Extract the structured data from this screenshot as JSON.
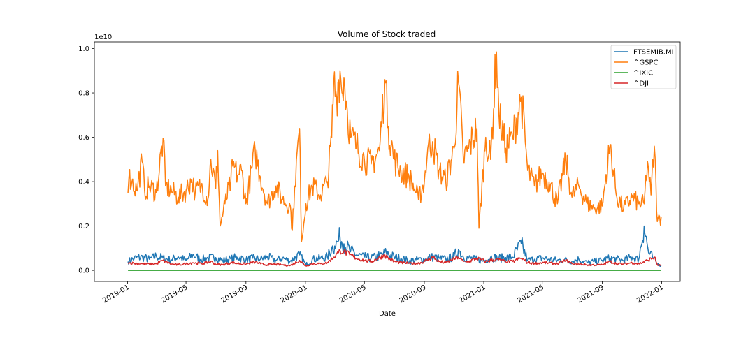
{
  "chart_data": {
    "type": "line",
    "title": "Volume of Stock traded",
    "xlabel": "Date",
    "ylabel": "",
    "y_offset_label": "1e10",
    "y_scale": 10000000000,
    "xlim": [
      "2018-10-25",
      "2022-02-08"
    ],
    "ylim": [
      -0.05,
      1.03
    ],
    "x_ticks": [
      "2019-01",
      "2019-05",
      "2019-09",
      "2020-01",
      "2020-05",
      "2020-09",
      "2021-01",
      "2021-05",
      "2021-09",
      "2022-01"
    ],
    "y_ticks": [
      "0.0",
      "0.2",
      "0.4",
      "0.6",
      "0.8",
      "1.0"
    ],
    "legend_position": "top-right",
    "series": [
      {
        "name": "FTSEMIB.MI",
        "color": "#1f77b4",
        "points": [
          [
            "2019-01-02",
            0.04
          ],
          [
            "2019-01-15",
            0.055
          ],
          [
            "2019-02-01",
            0.06
          ],
          [
            "2019-02-15",
            0.05
          ],
          [
            "2019-03-01",
            0.065
          ],
          [
            "2019-03-15",
            0.055
          ],
          [
            "2019-04-01",
            0.048
          ],
          [
            "2019-04-15",
            0.062
          ],
          [
            "2019-05-01",
            0.045
          ],
          [
            "2019-05-15",
            0.07
          ],
          [
            "2019-06-01",
            0.05
          ],
          [
            "2019-06-15",
            0.055
          ],
          [
            "2019-07-01",
            0.058
          ],
          [
            "2019-07-15",
            0.045
          ],
          [
            "2019-08-01",
            0.052
          ],
          [
            "2019-08-15",
            0.06
          ],
          [
            "2019-09-01",
            0.048
          ],
          [
            "2019-09-15",
            0.055
          ],
          [
            "2019-10-01",
            0.05
          ],
          [
            "2019-10-15",
            0.062
          ],
          [
            "2019-11-01",
            0.045
          ],
          [
            "2019-11-15",
            0.055
          ],
          [
            "2019-12-01",
            0.042
          ],
          [
            "2019-12-20",
            0.07
          ],
          [
            "2020-01-02",
            0.025
          ],
          [
            "2020-01-15",
            0.05
          ],
          [
            "2020-02-01",
            0.055
          ],
          [
            "2020-02-15",
            0.06
          ],
          [
            "2020-02-24",
            0.1
          ],
          [
            "2020-03-01",
            0.11
          ],
          [
            "2020-03-08",
            0.13
          ],
          [
            "2020-03-12",
            0.15
          ],
          [
            "2020-03-20",
            0.12
          ],
          [
            "2020-04-01",
            0.09
          ],
          [
            "2020-04-15",
            0.07
          ],
          [
            "2020-05-01",
            0.06
          ],
          [
            "2020-05-15",
            0.055
          ],
          [
            "2020-06-01",
            0.065
          ],
          [
            "2020-06-15",
            0.08
          ],
          [
            "2020-07-01",
            0.06
          ],
          [
            "2020-07-15",
            0.055
          ],
          [
            "2020-08-01",
            0.042
          ],
          [
            "2020-08-15",
            0.048
          ],
          [
            "2020-09-01",
            0.05
          ],
          [
            "2020-09-15",
            0.06
          ],
          [
            "2020-10-01",
            0.055
          ],
          [
            "2020-10-15",
            0.05
          ],
          [
            "2020-11-01",
            0.062
          ],
          [
            "2020-11-10",
            0.095
          ],
          [
            "2020-11-20",
            0.06
          ],
          [
            "2020-12-01",
            0.055
          ],
          [
            "2020-12-15",
            0.05
          ],
          [
            "2021-01-01",
            0.042
          ],
          [
            "2021-01-15",
            0.06
          ],
          [
            "2021-02-01",
            0.055
          ],
          [
            "2021-02-15",
            0.058
          ],
          [
            "2021-03-01",
            0.06
          ],
          [
            "2021-03-19",
            0.12
          ],
          [
            "2021-04-01",
            0.045
          ],
          [
            "2021-04-15",
            0.05
          ],
          [
            "2021-05-01",
            0.055
          ],
          [
            "2021-05-15",
            0.05
          ],
          [
            "2021-06-01",
            0.045
          ],
          [
            "2021-06-15",
            0.048
          ],
          [
            "2021-07-01",
            0.042
          ],
          [
            "2021-07-15",
            0.05
          ],
          [
            "2021-08-01",
            0.035
          ],
          [
            "2021-08-15",
            0.04
          ],
          [
            "2021-09-01",
            0.045
          ],
          [
            "2021-09-17",
            0.055
          ],
          [
            "2021-10-01",
            0.05
          ],
          [
            "2021-10-15",
            0.045
          ],
          [
            "2021-11-01",
            0.06
          ],
          [
            "2021-11-15",
            0.05
          ],
          [
            "2021-11-26",
            0.2
          ],
          [
            "2021-12-05",
            0.08
          ],
          [
            "2021-12-15",
            0.055
          ],
          [
            "2021-12-22",
            0.03
          ],
          [
            "2021-12-31",
            0.025
          ]
        ]
      },
      {
        "name": "^GSPC",
        "color": "#ff7f0e",
        "points": [
          [
            "2019-01-02",
            0.35
          ],
          [
            "2019-01-04",
            0.42
          ],
          [
            "2019-01-10",
            0.4
          ],
          [
            "2019-01-20",
            0.36
          ],
          [
            "2019-01-31",
            0.49
          ],
          [
            "2019-02-05",
            0.36
          ],
          [
            "2019-02-15",
            0.38
          ],
          [
            "2019-03-01",
            0.35
          ],
          [
            "2019-03-15",
            0.595
          ],
          [
            "2019-03-20",
            0.38
          ],
          [
            "2019-04-01",
            0.36
          ],
          [
            "2019-04-15",
            0.33
          ],
          [
            "2019-05-01",
            0.36
          ],
          [
            "2019-05-13",
            0.41
          ],
          [
            "2019-05-20",
            0.35
          ],
          [
            "2019-06-01",
            0.38
          ],
          [
            "2019-06-15",
            0.32
          ],
          [
            "2019-06-21",
            0.5
          ],
          [
            "2019-07-01",
            0.37
          ],
          [
            "2019-07-05",
            0.54
          ],
          [
            "2019-07-10",
            0.2
          ],
          [
            "2019-07-20",
            0.3
          ],
          [
            "2019-08-01",
            0.4
          ],
          [
            "2019-08-05",
            0.47
          ],
          [
            "2019-08-15",
            0.43
          ],
          [
            "2019-08-23",
            0.45
          ],
          [
            "2019-09-01",
            0.3
          ],
          [
            "2019-09-20",
            0.54
          ],
          [
            "2019-10-01",
            0.42
          ],
          [
            "2019-10-15",
            0.3
          ],
          [
            "2019-11-01",
            0.38
          ],
          [
            "2019-11-15",
            0.32
          ],
          [
            "2019-12-01",
            0.29
          ],
          [
            "2019-12-05",
            0.18
          ],
          [
            "2019-12-10",
            0.38
          ],
          [
            "2019-12-20",
            0.64
          ],
          [
            "2019-12-24",
            0.13
          ],
          [
            "2020-01-02",
            0.3
          ],
          [
            "2020-01-15",
            0.38
          ],
          [
            "2020-02-01",
            0.34
          ],
          [
            "2020-02-15",
            0.4
          ],
          [
            "2020-02-24",
            0.6
          ],
          [
            "2020-02-28",
            0.85
          ],
          [
            "2020-03-05",
            0.78
          ],
          [
            "2020-03-09",
            0.86
          ],
          [
            "2020-03-12",
            0.9
          ],
          [
            "2020-03-16",
            0.8
          ],
          [
            "2020-03-20",
            0.87
          ],
          [
            "2020-03-27",
            0.72
          ],
          [
            "2020-04-03",
            0.6
          ],
          [
            "2020-04-15",
            0.56
          ],
          [
            "2020-05-01",
            0.5
          ],
          [
            "2020-05-15",
            0.48
          ],
          [
            "2020-06-01",
            0.54
          ],
          [
            "2020-06-12",
            0.86
          ],
          [
            "2020-06-19",
            0.65
          ],
          [
            "2020-07-01",
            0.5
          ],
          [
            "2020-07-15",
            0.45
          ],
          [
            "2020-08-01",
            0.42
          ],
          [
            "2020-08-15",
            0.35
          ],
          [
            "2020-08-20",
            0.32
          ],
          [
            "2020-09-01",
            0.4
          ],
          [
            "2020-09-08",
            0.55
          ],
          [
            "2020-09-18",
            0.58
          ],
          [
            "2020-10-01",
            0.45
          ],
          [
            "2020-10-15",
            0.4
          ],
          [
            "2020-11-01",
            0.55
          ],
          [
            "2020-11-10",
            0.85
          ],
          [
            "2020-11-20",
            0.5
          ],
          [
            "2020-12-01",
            0.55
          ],
          [
            "2020-12-18",
            0.64
          ],
          [
            "2020-12-22",
            0.19
          ],
          [
            "2021-01-05",
            0.6
          ],
          [
            "2021-01-15",
            0.5
          ],
          [
            "2021-01-27",
            0.985
          ],
          [
            "2021-02-01",
            0.7
          ],
          [
            "2021-02-15",
            0.55
          ],
          [
            "2021-03-01",
            0.6
          ],
          [
            "2021-03-19",
            0.78
          ],
          [
            "2021-04-01",
            0.45
          ],
          [
            "2021-04-15",
            0.38
          ],
          [
            "2021-05-01",
            0.44
          ],
          [
            "2021-05-15",
            0.4
          ],
          [
            "2021-06-01",
            0.3
          ],
          [
            "2021-06-18",
            0.5
          ],
          [
            "2021-07-01",
            0.33
          ],
          [
            "2021-07-15",
            0.38
          ],
          [
            "2021-08-01",
            0.3
          ],
          [
            "2021-08-15",
            0.28
          ],
          [
            "2021-09-01",
            0.29
          ],
          [
            "2021-09-17",
            0.56
          ],
          [
            "2021-10-01",
            0.33
          ],
          [
            "2021-10-15",
            0.28
          ],
          [
            "2021-11-01",
            0.33
          ],
          [
            "2021-11-15",
            0.3
          ],
          [
            "2021-11-26",
            0.3
          ],
          [
            "2021-12-03",
            0.49
          ],
          [
            "2021-12-10",
            0.34
          ],
          [
            "2021-12-17",
            0.56
          ],
          [
            "2021-12-23",
            0.22
          ],
          [
            "2021-12-31",
            0.24
          ]
        ]
      },
      {
        "name": "^IXIC",
        "color": "#2ca02c",
        "points": [
          [
            "2019-01-02",
            0.0
          ],
          [
            "2021-12-31",
            0.0
          ]
        ]
      },
      {
        "name": "^DJI",
        "color": "#d62728",
        "points": [
          [
            "2019-01-02",
            0.035
          ],
          [
            "2019-01-15",
            0.032
          ],
          [
            "2019-02-01",
            0.03
          ],
          [
            "2019-02-15",
            0.028
          ],
          [
            "2019-03-01",
            0.03
          ],
          [
            "2019-03-15",
            0.045
          ],
          [
            "2019-04-01",
            0.028
          ],
          [
            "2019-04-15",
            0.025
          ],
          [
            "2019-05-01",
            0.03
          ],
          [
            "2019-05-15",
            0.035
          ],
          [
            "2019-06-01",
            0.03
          ],
          [
            "2019-06-21",
            0.04
          ],
          [
            "2019-07-01",
            0.028
          ],
          [
            "2019-07-15",
            0.025
          ],
          [
            "2019-08-01",
            0.035
          ],
          [
            "2019-08-15",
            0.032
          ],
          [
            "2019-09-01",
            0.028
          ],
          [
            "2019-09-20",
            0.038
          ],
          [
            "2019-10-01",
            0.03
          ],
          [
            "2019-10-15",
            0.025
          ],
          [
            "2019-11-01",
            0.028
          ],
          [
            "2019-11-15",
            0.025
          ],
          [
            "2019-12-01",
            0.022
          ],
          [
            "2019-12-20",
            0.045
          ],
          [
            "2020-01-02",
            0.02
          ],
          [
            "2020-01-15",
            0.03
          ],
          [
            "2020-02-01",
            0.03
          ],
          [
            "2020-02-15",
            0.035
          ],
          [
            "2020-02-28",
            0.06
          ],
          [
            "2020-03-09",
            0.08
          ],
          [
            "2020-03-12",
            0.09
          ],
          [
            "2020-03-20",
            0.085
          ],
          [
            "2020-04-01",
            0.07
          ],
          [
            "2020-04-15",
            0.055
          ],
          [
            "2020-05-01",
            0.045
          ],
          [
            "2020-05-15",
            0.04
          ],
          [
            "2020-06-12",
            0.07
          ],
          [
            "2020-06-19",
            0.055
          ],
          [
            "2020-07-01",
            0.04
          ],
          [
            "2020-07-15",
            0.035
          ],
          [
            "2020-08-01",
            0.032
          ],
          [
            "2020-08-15",
            0.03
          ],
          [
            "2020-09-01",
            0.04
          ],
          [
            "2020-09-18",
            0.06
          ],
          [
            "2020-10-01",
            0.04
          ],
          [
            "2020-10-15",
            0.035
          ],
          [
            "2020-11-10",
            0.06
          ],
          [
            "2020-11-20",
            0.04
          ],
          [
            "2020-12-01",
            0.04
          ],
          [
            "2020-12-18",
            0.055
          ],
          [
            "2021-01-05",
            0.04
          ],
          [
            "2021-01-27",
            0.05
          ],
          [
            "2021-02-15",
            0.04
          ],
          [
            "2021-03-01",
            0.04
          ],
          [
            "2021-03-19",
            0.055
          ],
          [
            "2021-04-01",
            0.035
          ],
          [
            "2021-04-15",
            0.032
          ],
          [
            "2021-05-01",
            0.035
          ],
          [
            "2021-05-15",
            0.033
          ],
          [
            "2021-06-01",
            0.03
          ],
          [
            "2021-06-18",
            0.045
          ],
          [
            "2021-07-01",
            0.03
          ],
          [
            "2021-07-15",
            0.028
          ],
          [
            "2021-08-01",
            0.025
          ],
          [
            "2021-08-15",
            0.025
          ],
          [
            "2021-09-01",
            0.025
          ],
          [
            "2021-09-17",
            0.04
          ],
          [
            "2021-10-01",
            0.03
          ],
          [
            "2021-10-15",
            0.028
          ],
          [
            "2021-11-01",
            0.035
          ],
          [
            "2021-11-15",
            0.03
          ],
          [
            "2021-12-03",
            0.045
          ],
          [
            "2021-12-17",
            0.06
          ],
          [
            "2021-12-23",
            0.025
          ],
          [
            "2021-12-31",
            0.022
          ]
        ]
      }
    ]
  }
}
